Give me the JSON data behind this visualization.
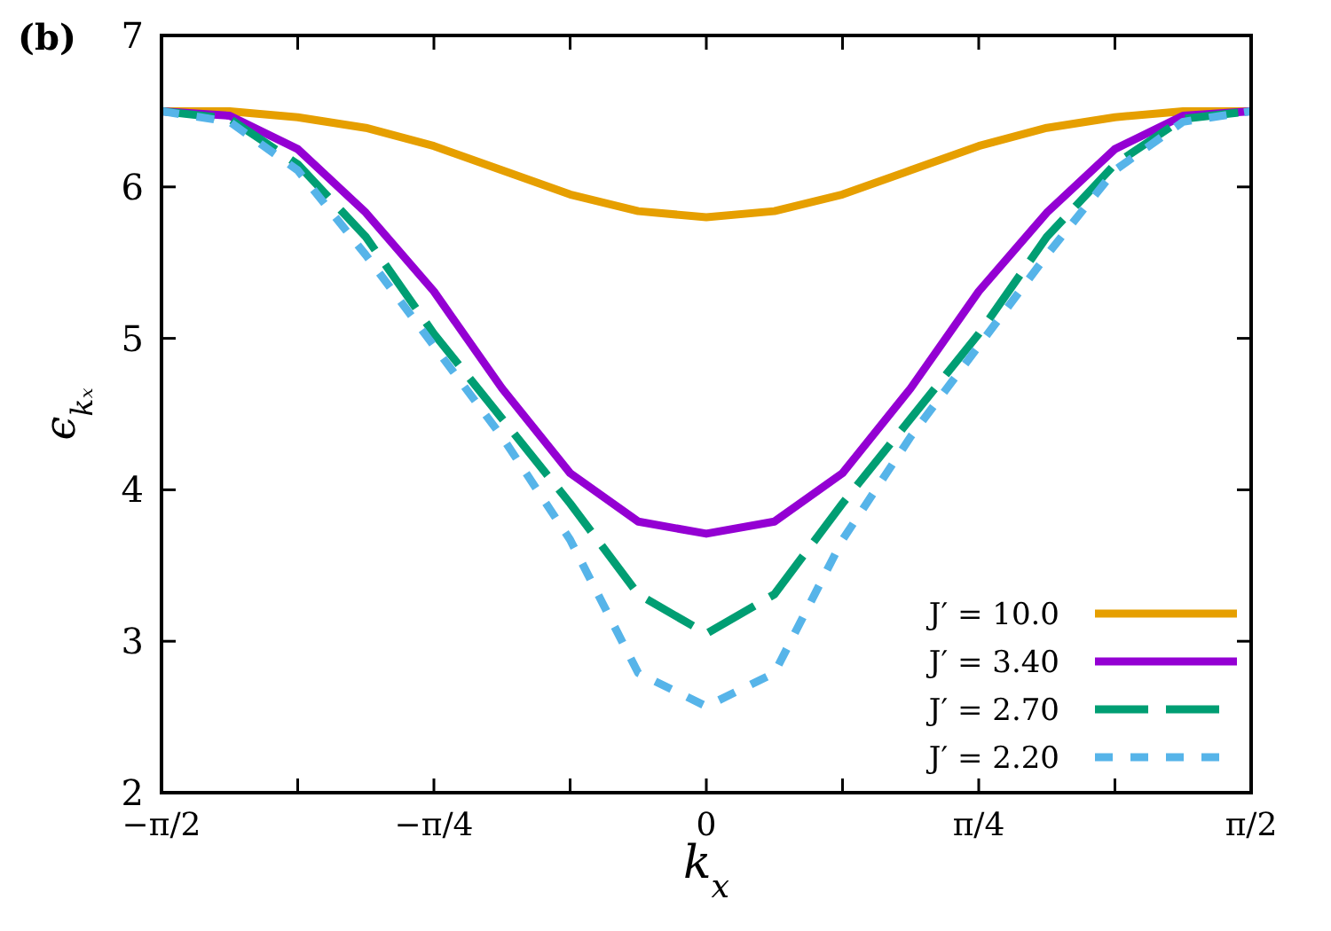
{
  "chart_data": {
    "type": "line",
    "xlabel": "k$_{x}$",
    "ylabel": "ϵ$_{kₓ}$",
    "annotations": [
      "(b)"
    ],
    "x": [
      -1.5708,
      -1.3744,
      -1.1781,
      -0.9817,
      -0.7854,
      -0.589,
      -0.3927,
      -0.1963,
      0,
      0.1963,
      0.3927,
      0.589,
      0.7854,
      0.9817,
      1.1781,
      1.3744,
      1.5708
    ],
    "xlim": [
      -1.5708,
      1.5708
    ],
    "xticks": [
      {
        "value": -1.5708,
        "label": "−π/2"
      },
      {
        "value": -1.1781,
        "label": null
      },
      {
        "value": -0.7854,
        "label": "−π/4"
      },
      {
        "value": -0.3927,
        "label": null
      },
      0,
      {
        "value": 0.3927,
        "label": null
      },
      {
        "value": 0.7854,
        "label": "π/4"
      },
      {
        "value": 1.1781,
        "label": null
      },
      {
        "value": 1.5708,
        "label": "π/2"
      }
    ],
    "ylim": [
      2,
      7
    ],
    "yticks": [
      2,
      3,
      4,
      5,
      6,
      7
    ],
    "grid": false,
    "legend": "bottom right",
    "marker": "none",
    "series": [
      {
        "name": "J′ = 10.0",
        "color": "#e69f00",
        "line_style": "solid",
        "values": [
          6.5,
          6.5,
          6.46,
          6.39,
          6.27,
          6.11,
          5.95,
          5.84,
          5.8,
          5.84,
          5.95,
          6.11,
          6.27,
          6.39,
          6.46,
          6.5,
          6.5
        ]
      },
      {
        "name": "J′ = 3.40",
        "color": "#9400d3",
        "line_style": "solid",
        "values": [
          6.5,
          6.47,
          6.25,
          5.83,
          5.31,
          4.67,
          4.11,
          3.79,
          3.71,
          3.79,
          4.11,
          4.67,
          5.31,
          5.83,
          6.25,
          6.47,
          6.5
        ]
      },
      {
        "name": "J′ = 2.70",
        "color": "#009e73",
        "line_style": "dashed",
        "values": [
          6.5,
          6.45,
          6.15,
          5.67,
          5.03,
          4.47,
          3.91,
          3.31,
          3.05,
          3.31,
          3.91,
          4.47,
          5.03,
          5.67,
          6.15,
          6.45,
          6.5
        ]
      },
      {
        "name": "J′ = 2.20",
        "color": "#56b4e9",
        "line_style": "dotted",
        "values": [
          6.5,
          6.43,
          6.11,
          5.55,
          4.95,
          4.35,
          3.67,
          2.79,
          2.57,
          2.79,
          3.67,
          4.35,
          4.95,
          5.55,
          6.11,
          6.43,
          6.5
        ]
      }
    ]
  }
}
